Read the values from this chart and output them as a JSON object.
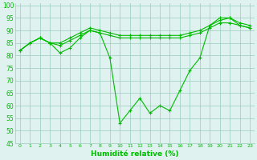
{
  "xlabel": "Humidité relative (%)",
  "x": [
    0,
    1,
    2,
    3,
    4,
    5,
    6,
    7,
    8,
    9,
    10,
    11,
    12,
    13,
    14,
    15,
    16,
    17,
    18,
    19,
    20,
    21,
    22,
    23
  ],
  "line1": [
    82,
    85,
    87,
    85,
    81,
    83,
    87,
    90,
    89,
    79,
    53,
    58,
    63,
    57,
    60,
    58,
    66,
    74,
    79,
    92,
    95,
    95,
    92,
    91
  ],
  "line2": [
    82,
    85,
    87,
    85,
    84,
    86,
    88,
    90,
    89,
    88,
    87,
    87,
    87,
    87,
    87,
    87,
    87,
    88,
    89,
    91,
    93,
    93,
    92,
    91
  ],
  "line3": [
    82,
    85,
    87,
    85,
    85,
    87,
    89,
    91,
    90,
    89,
    88,
    88,
    88,
    88,
    88,
    88,
    88,
    89,
    90,
    92,
    94,
    95,
    93,
    92
  ],
  "line_color": "#00bb00",
  "bg_color": "#dff2f0",
  "grid_color": "#99ccbb",
  "ylim": [
    45,
    101
  ],
  "yticks": [
    45,
    50,
    55,
    60,
    65,
    70,
    75,
    80,
    85,
    90,
    95,
    100
  ],
  "xticks": [
    0,
    1,
    2,
    3,
    4,
    5,
    6,
    7,
    8,
    9,
    10,
    11,
    12,
    13,
    14,
    15,
    16,
    17,
    18,
    19,
    20,
    21,
    22,
    23
  ]
}
